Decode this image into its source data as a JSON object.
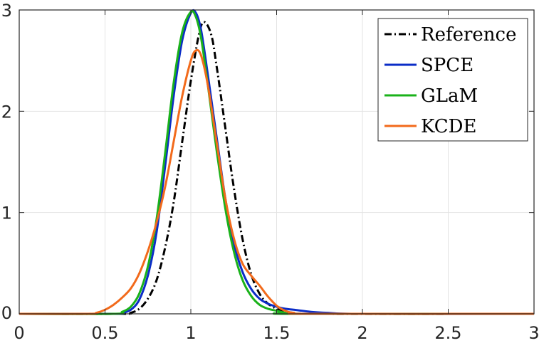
{
  "chart_data": {
    "type": "line",
    "title": "",
    "xlabel": "",
    "ylabel": "",
    "xlim": [
      0,
      3
    ],
    "ylim": [
      0,
      3
    ],
    "xticks": [
      0,
      0.5,
      1,
      1.5,
      2,
      2.5,
      3
    ],
    "xtick_labels": [
      "0",
      "0.5",
      "1",
      "1.5",
      "2",
      "2.5",
      "3"
    ],
    "yticks": [
      0,
      1,
      2,
      3
    ],
    "ytick_labels": [
      "0",
      "1",
      "2",
      "3"
    ],
    "grid": true,
    "legend_position": "top-right",
    "series": [
      {
        "name": "Reference",
        "color": "#000000",
        "line_style": "dash-dot",
        "points": [
          [
            0,
            0
          ],
          [
            0.6,
            0
          ],
          [
            0.65,
            0.01
          ],
          [
            0.7,
            0.05
          ],
          [
            0.75,
            0.15
          ],
          [
            0.8,
            0.33
          ],
          [
            0.85,
            0.65
          ],
          [
            0.9,
            1.1
          ],
          [
            0.95,
            1.7
          ],
          [
            1.0,
            2.3
          ],
          [
            1.05,
            2.78
          ],
          [
            1.08,
            2.88
          ],
          [
            1.12,
            2.75
          ],
          [
            1.15,
            2.45
          ],
          [
            1.2,
            1.85
          ],
          [
            1.25,
            1.25
          ],
          [
            1.3,
            0.75
          ],
          [
            1.35,
            0.4
          ],
          [
            1.4,
            0.2
          ],
          [
            1.45,
            0.1
          ],
          [
            1.5,
            0.05
          ],
          [
            1.55,
            0.02
          ],
          [
            1.6,
            0.01
          ],
          [
            1.7,
            0
          ],
          [
            3,
            0
          ]
        ]
      },
      {
        "name": "SPCE",
        "color": "#0b2dc7",
        "line_style": "solid",
        "points": [
          [
            0,
            0
          ],
          [
            0.55,
            0
          ],
          [
            0.6,
            0.01
          ],
          [
            0.65,
            0.04
          ],
          [
            0.7,
            0.14
          ],
          [
            0.75,
            0.38
          ],
          [
            0.8,
            0.8
          ],
          [
            0.85,
            1.45
          ],
          [
            0.9,
            2.15
          ],
          [
            0.95,
            2.7
          ],
          [
            1.0,
            2.97
          ],
          [
            1.03,
            2.97
          ],
          [
            1.06,
            2.8
          ],
          [
            1.1,
            2.35
          ],
          [
            1.15,
            1.75
          ],
          [
            1.2,
            1.15
          ],
          [
            1.25,
            0.7
          ],
          [
            1.3,
            0.42
          ],
          [
            1.35,
            0.25
          ],
          [
            1.4,
            0.15
          ],
          [
            1.45,
            0.1
          ],
          [
            1.5,
            0.07
          ],
          [
            1.55,
            0.05
          ],
          [
            1.6,
            0.04
          ],
          [
            1.7,
            0.02
          ],
          [
            1.8,
            0.01
          ],
          [
            2.0,
            0
          ],
          [
            3,
            0
          ]
        ]
      },
      {
        "name": "GLaM",
        "color": "#1ab21a",
        "line_style": "solid",
        "points": [
          [
            0,
            0
          ],
          [
            0.55,
            0
          ],
          [
            0.6,
            0.02
          ],
          [
            0.65,
            0.07
          ],
          [
            0.7,
            0.2
          ],
          [
            0.75,
            0.47
          ],
          [
            0.8,
            0.93
          ],
          [
            0.85,
            1.58
          ],
          [
            0.9,
            2.28
          ],
          [
            0.95,
            2.78
          ],
          [
            1.0,
            2.98
          ],
          [
            1.03,
            2.93
          ],
          [
            1.06,
            2.72
          ],
          [
            1.1,
            2.25
          ],
          [
            1.15,
            1.62
          ],
          [
            1.2,
            1.05
          ],
          [
            1.25,
            0.62
          ],
          [
            1.3,
            0.34
          ],
          [
            1.35,
            0.18
          ],
          [
            1.4,
            0.09
          ],
          [
            1.45,
            0.05
          ],
          [
            1.5,
            0.03
          ],
          [
            1.55,
            0.01
          ],
          [
            1.6,
            0
          ],
          [
            3,
            0
          ]
        ]
      },
      {
        "name": "KCDE",
        "color": "#f26a1b",
        "line_style": "solid",
        "points": [
          [
            0,
            0
          ],
          [
            0.4,
            0
          ],
          [
            0.45,
            0.01
          ],
          [
            0.5,
            0.04
          ],
          [
            0.55,
            0.09
          ],
          [
            0.6,
            0.16
          ],
          [
            0.65,
            0.25
          ],
          [
            0.7,
            0.4
          ],
          [
            0.75,
            0.62
          ],
          [
            0.8,
            0.9
          ],
          [
            0.85,
            1.25
          ],
          [
            0.9,
            1.7
          ],
          [
            0.95,
            2.15
          ],
          [
            1.0,
            2.5
          ],
          [
            1.03,
            2.6
          ],
          [
            1.06,
            2.55
          ],
          [
            1.1,
            2.25
          ],
          [
            1.15,
            1.7
          ],
          [
            1.2,
            1.15
          ],
          [
            1.25,
            0.75
          ],
          [
            1.3,
            0.5
          ],
          [
            1.35,
            0.38
          ],
          [
            1.4,
            0.28
          ],
          [
            1.45,
            0.17
          ],
          [
            1.5,
            0.08
          ],
          [
            1.55,
            0.03
          ],
          [
            1.6,
            0.01
          ],
          [
            1.7,
            0
          ],
          [
            3,
            0
          ]
        ]
      }
    ]
  }
}
